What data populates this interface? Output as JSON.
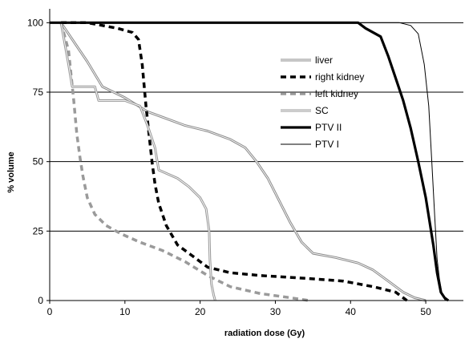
{
  "chart_data": {
    "type": "line",
    "title": "",
    "xlabel": "radiation dose (Gy)",
    "ylabel": "% volume",
    "xlim": [
      0,
      55
    ],
    "ylim": [
      0,
      105
    ],
    "xticks": [
      0,
      10,
      20,
      30,
      40,
      50
    ],
    "yticks": [
      0,
      25,
      50,
      75,
      100
    ],
    "grid": "horizontal",
    "legend_position": "center-right",
    "series": [
      {
        "name": "liver",
        "color": "#8c8c8c",
        "style": "double-thin",
        "x": [
          1.5,
          3,
          5,
          7,
          10,
          13,
          15,
          18,
          21,
          24,
          26,
          27.5,
          29,
          30.5,
          32,
          33.5,
          35,
          38,
          41,
          43,
          45,
          47,
          48.5,
          50
        ],
        "y": [
          100,
          94,
          86,
          77,
          73,
          68,
          66,
          63,
          61,
          58,
          55,
          50,
          44,
          36,
          28,
          21,
          17,
          15.5,
          13.5,
          11,
          7,
          3,
          1,
          0
        ]
      },
      {
        "name": "right kidney",
        "color": "#000000",
        "style": "dashed-thick",
        "x": [
          1.5,
          5,
          7,
          9,
          11,
          11.8,
          12.3,
          12.8,
          13.2,
          13.6,
          14,
          14.5,
          15.5,
          17,
          19,
          21,
          24,
          28,
          34,
          39,
          43,
          46,
          47.5
        ],
        "y": [
          100,
          100,
          99,
          98,
          96.5,
          94,
          85,
          70,
          60,
          50,
          42,
          35,
          27,
          20,
          16,
          12,
          10,
          9,
          8,
          7,
          5,
          3,
          0
        ]
      },
      {
        "name": "left kidney",
        "color": "#9a9a9a",
        "style": "dashed-thick",
        "x": [
          1.5,
          2.5,
          3.2,
          3.6,
          4,
          4.4,
          5,
          6,
          7.5,
          9.5,
          12,
          15,
          18,
          21,
          24,
          28,
          32,
          34.5
        ],
        "y": [
          100,
          90,
          72,
          60,
          52,
          45,
          37,
          31,
          27,
          24,
          21,
          18,
          14,
          9,
          5,
          2.5,
          1,
          0
        ]
      },
      {
        "name": "SC",
        "color": "#9a9a9a",
        "style": "double-thin",
        "x": [
          1.5,
          2.5,
          3,
          6,
          6.5,
          10,
          12,
          13,
          14,
          14.5,
          17,
          18.5,
          20,
          20.8,
          21.2,
          21.3,
          21.5,
          21.8,
          22
        ],
        "y": [
          100,
          85,
          77,
          77,
          72,
          72,
          70,
          63,
          55,
          47,
          44,
          41,
          37,
          33,
          25,
          15,
          6,
          2,
          0
        ]
      },
      {
        "name": "PTV II",
        "color": "#000000",
        "style": "solid-thick",
        "x": [
          0,
          41,
          42,
          44,
          45,
          46,
          47,
          48,
          49,
          50,
          51,
          51.5,
          52,
          52.5,
          53
        ],
        "y": [
          100,
          100,
          98,
          95,
          88,
          80,
          72,
          62,
          50,
          37,
          20,
          10,
          3,
          1,
          0
        ]
      },
      {
        "name": "PTV I",
        "color": "#000000",
        "style": "solid-thin",
        "x": [
          0,
          46.5,
          48,
          49,
          49.8,
          50.4,
          50.8,
          51.2,
          51.5,
          51.8,
          52.2,
          52.6
        ],
        "y": [
          100,
          100,
          99,
          96,
          85,
          70,
          50,
          30,
          15,
          8,
          2,
          0
        ]
      }
    ]
  }
}
